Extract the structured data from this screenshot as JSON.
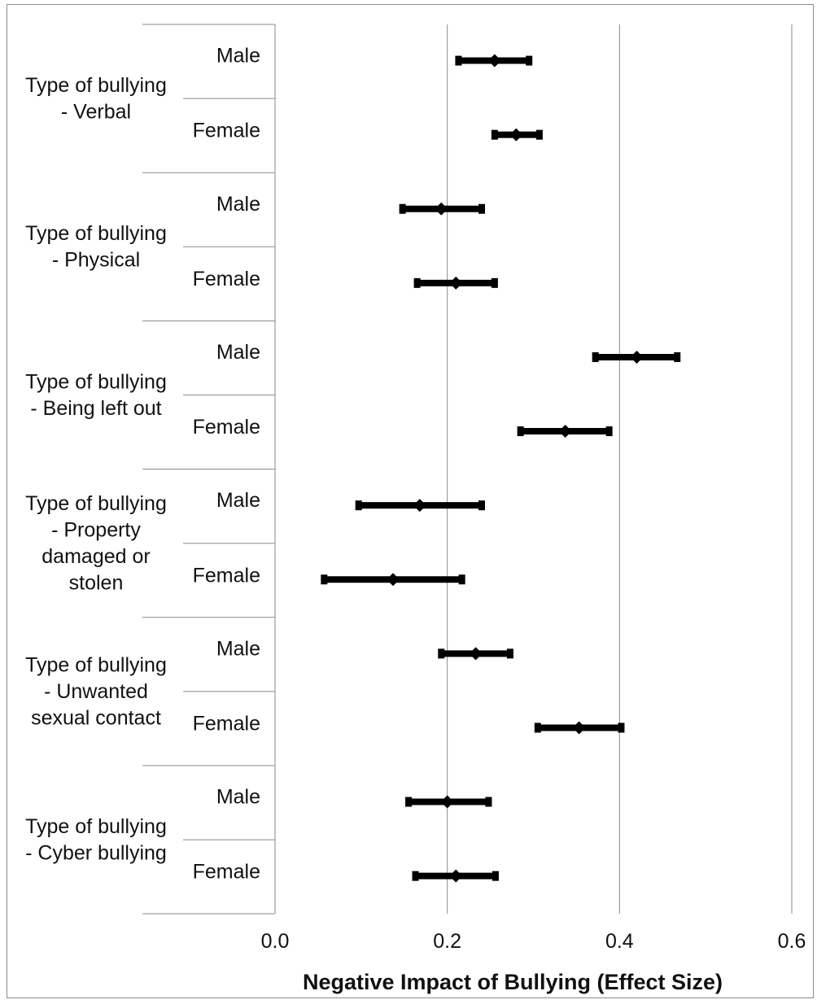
{
  "chart_data": {
    "type": "forest",
    "orientation": "horizontal",
    "xlabel": "Negative Impact of Bullying (Effect Size)",
    "xlim": [
      0.0,
      0.6
    ],
    "xticks": [
      "0.0",
      "0.2",
      "0.4",
      "0.6"
    ],
    "gridlines": "vertical",
    "groups": [
      {
        "label": [
          "Type of bullying",
          "- Verbal"
        ],
        "rows": [
          {
            "label": "Male",
            "estimate": 0.255,
            "lower": 0.213,
            "upper": 0.295
          },
          {
            "label": "Female",
            "estimate": 0.28,
            "lower": 0.255,
            "upper": 0.307
          }
        ]
      },
      {
        "label": [
          "Type of bullying",
          "- Physical"
        ],
        "rows": [
          {
            "label": "Male",
            "estimate": 0.193,
            "lower": 0.148,
            "upper": 0.24
          },
          {
            "label": "Female",
            "estimate": 0.21,
            "lower": 0.165,
            "upper": 0.255
          }
        ]
      },
      {
        "label": [
          "Type of bullying",
          "- Being left out"
        ],
        "rows": [
          {
            "label": "Male",
            "estimate": 0.42,
            "lower": 0.372,
            "upper": 0.467
          },
          {
            "label": "Female",
            "estimate": 0.337,
            "lower": 0.285,
            "upper": 0.388
          }
        ]
      },
      {
        "label": [
          "Type of bullying",
          "- Property",
          "damaged or",
          "stolen"
        ],
        "rows": [
          {
            "label": "Male",
            "estimate": 0.168,
            "lower": 0.097,
            "upper": 0.24
          },
          {
            "label": "Female",
            "estimate": 0.137,
            "lower": 0.057,
            "upper": 0.217
          }
        ]
      },
      {
        "label": [
          "Type of bullying",
          "- Unwanted",
          "sexual contact"
        ],
        "rows": [
          {
            "label": "Male",
            "estimate": 0.233,
            "lower": 0.193,
            "upper": 0.273
          },
          {
            "label": "Female",
            "estimate": 0.353,
            "lower": 0.305,
            "upper": 0.402
          }
        ]
      },
      {
        "label": [
          "Type of bullying",
          "- Cyber bullying"
        ],
        "rows": [
          {
            "label": "Male",
            "estimate": 0.2,
            "lower": 0.155,
            "upper": 0.248
          },
          {
            "label": "Female",
            "estimate": 0.21,
            "lower": 0.163,
            "upper": 0.256
          }
        ]
      }
    ]
  }
}
